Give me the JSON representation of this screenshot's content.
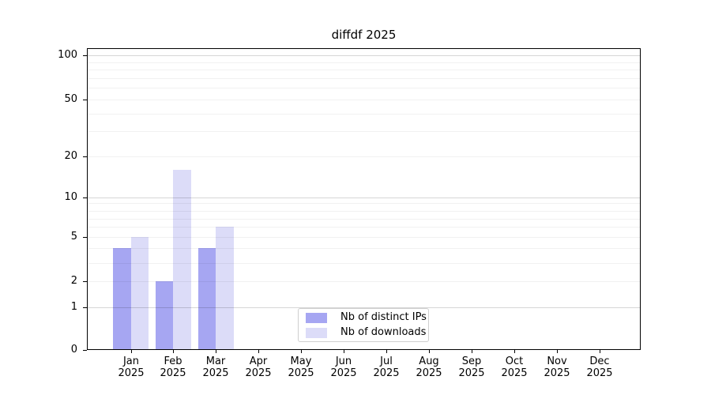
{
  "chart_data": {
    "type": "bar",
    "title": "diffdf 2025",
    "categories": [
      "Jan",
      "Feb",
      "Mar",
      "Apr",
      "May",
      "Jun",
      "Jul",
      "Aug",
      "Sep",
      "Oct",
      "Nov",
      "Dec"
    ],
    "x_year_label": "2025",
    "series": [
      {
        "name": "Nb of distinct IPs",
        "color": "#a6a6f2",
        "values": [
          4,
          2,
          4,
          0,
          0,
          0,
          0,
          0,
          0,
          0,
          0,
          0
        ]
      },
      {
        "name": "Nb of downloads",
        "color": "#dcdcf8",
        "values": [
          5,
          16,
          6,
          0,
          0,
          0,
          0,
          0,
          0,
          0,
          0,
          0
        ]
      }
    ],
    "yticks": [
      0,
      1,
      2,
      5,
      10,
      20,
      50,
      100
    ],
    "ylim": [
      0,
      110
    ],
    "yscale": "symlog-like",
    "grid": true,
    "legend_position": "lower center",
    "colors": {
      "axis": "#000000",
      "major_grid": "#d6d6d6",
      "minor_grid": "#f1f1f1",
      "background": "#ffffff"
    }
  }
}
